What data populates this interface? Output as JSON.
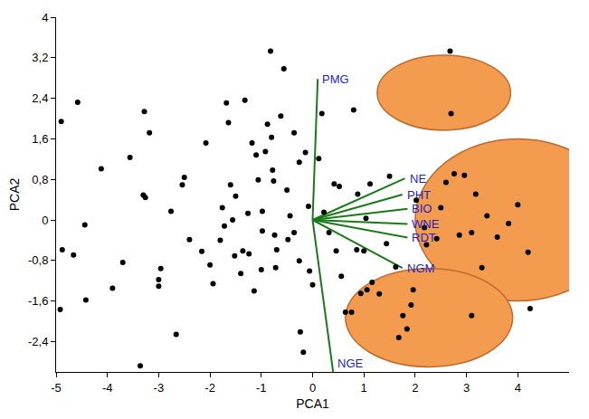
{
  "chart_data": {
    "type": "scatter",
    "x_label": "PCA1",
    "y_label": "PCA2",
    "xlim": [
      -5,
      5
    ],
    "ylim": [
      -3,
      4
    ],
    "xticks": [
      -5,
      -4,
      -3,
      -2,
      -1,
      0,
      1,
      2,
      3,
      4
    ],
    "yticks": [
      {
        "value": -2.4,
        "label": "-2,4"
      },
      {
        "value": -1.6,
        "label": "-1,6"
      },
      {
        "value": -0.8,
        "label": "-0,8"
      },
      0,
      {
        "value": 0.8,
        "label": "0,8"
      },
      {
        "value": 1.6,
        "label": "1,6"
      },
      {
        "value": 2.4,
        "label": "2,4"
      },
      {
        "value": 3.2,
        "label": "3,2"
      },
      4
    ],
    "grid": false,
    "series": [
      {
        "color": "#000000",
        "marker": "circle",
        "x": [
          -4.9,
          -4.58,
          -4.88,
          -4.66,
          -4.44,
          -4.92,
          -4.42,
          -4.12,
          -3.9,
          -3.7,
          -3.56,
          -3.28,
          -3.18,
          -3.3,
          -3.26,
          -3.0,
          -3.0,
          -2.96,
          -3.36,
          -2.66,
          -2.76,
          -2.5,
          -2.54,
          -2.4,
          -2.16,
          -2.08,
          -2.0,
          -1.94,
          -1.8,
          -1.76,
          -1.72,
          -1.68,
          -1.64,
          -1.6,
          -1.56,
          -1.52,
          -1.5,
          -1.4,
          -1.36,
          -1.32,
          -1.26,
          -1.24,
          -1.18,
          -1.14,
          -1.1,
          -1.06,
          -1.0,
          -0.98,
          -0.98,
          -0.92,
          -0.88,
          -0.82,
          -0.8,
          -0.78,
          -0.76,
          -0.74,
          -0.72,
          -0.7,
          -0.62,
          -0.56,
          -0.5,
          -0.48,
          -0.44,
          -0.36,
          -0.36,
          -0.26,
          -0.26,
          -0.24,
          -0.18,
          -0.14,
          -0.08,
          -0.06,
          0,
          0.12,
          0.18,
          0.22,
          0.32,
          0.42,
          0.46,
          0.52,
          0.56,
          0.64,
          0.76,
          0.8,
          0.86,
          0.88,
          0.94,
          1.0,
          1.04,
          1.06,
          1.12,
          1.16,
          1.3,
          1.44,
          1.5,
          1.62,
          1.68,
          1.76,
          1.84,
          1.92,
          1.96,
          2.02,
          2.18,
          2.22,
          2.42,
          2.5,
          2.6,
          2.68,
          2.7,
          2.76,
          2.86,
          2.96,
          3.1,
          3.18,
          3.3,
          3.4,
          3.6,
          3.82,
          4.0,
          4.2,
          4.24,
          3.1
        ],
        "y": [
          1.94,
          2.32,
          -0.59,
          -0.69,
          -0.1,
          -1.77,
          -1.58,
          1.01,
          -1.35,
          -0.84,
          1.23,
          2.14,
          1.72,
          0.49,
          0.44,
          -1.18,
          -1.31,
          -0.96,
          -2.88,
          -2.26,
          0.17,
          0.84,
          0.69,
          -0.39,
          -0.62,
          1.52,
          -0.89,
          -1.26,
          -0.4,
          0.24,
          -0.12,
          2.31,
          1.92,
          0.69,
          0,
          -0.71,
          0.47,
          -1.06,
          -0.61,
          2.36,
          0.13,
          -0.67,
          1.52,
          -1.4,
          1.28,
          0.79,
          -0.98,
          -0.22,
          0.17,
          1.35,
          1.89,
          3.33,
          1.63,
          0.98,
          0.77,
          -0.3,
          -0.94,
          -0.59,
          2.05,
          2.98,
          0.59,
          -0.39,
          0.08,
          -0.25,
          1.72,
          1.14,
          -0.81,
          -2.21,
          -2.61,
          1.33,
          0.27,
          -1.01,
          -1.28,
          1.21,
          2.1,
          0.15,
          -0.25,
          0.71,
          -0.61,
          0.66,
          -1.11,
          -1.82,
          -1.82,
          2.17,
          -0.59,
          0.51,
          -1.45,
          -0.61,
          0.03,
          -1.38,
          0.71,
          -1.23,
          -1.46,
          -0.47,
          0.86,
          -0.93,
          -2.32,
          -1.89,
          -2.15,
          -1.68,
          -1.38,
          0.39,
          -0.15,
          -0.49,
          -0.37,
          0.24,
          0.74,
          3.33,
          2.1,
          0.91,
          -0.3,
          0.88,
          -0.25,
          0.51,
          -0.94,
          0.08,
          -0.34,
          -0.07,
          0.3,
          -0.64,
          -1.75,
          -1.89
        ]
      }
    ],
    "vectors": {
      "color": "#1a7a1a",
      "origin": [
        0,
        0
      ],
      "items": [
        {
          "name": "PMG",
          "x": 0.1,
          "y": 2.78
        },
        {
          "name": "NE",
          "x": 1.8,
          "y": 0.82
        },
        {
          "name": "PHT",
          "x": 1.75,
          "y": 0.5
        },
        {
          "name": "BIO",
          "x": 1.85,
          "y": 0.22
        },
        {
          "name": "WNE",
          "x": 1.85,
          "y": -0.08
        },
        {
          "name": "RDT",
          "x": 1.85,
          "y": -0.35
        },
        {
          "name": "NGM",
          "x": 1.75,
          "y": -0.95
        },
        {
          "name": "NGE",
          "x": 0.4,
          "y": -3.0
        }
      ]
    },
    "ellipses": {
      "color": "#f39c50",
      "items": [
        {
          "x0": 1.26,
          "x1": 3.86,
          "y0": 1.77,
          "y1": 3.25
        },
        {
          "x0": 2.0,
          "x1": 6.0,
          "y0": -1.6,
          "y1": 1.6
        },
        {
          "x0": 0.64,
          "x1": 3.9,
          "y0": -2.9,
          "y1": -0.96
        }
      ]
    }
  }
}
